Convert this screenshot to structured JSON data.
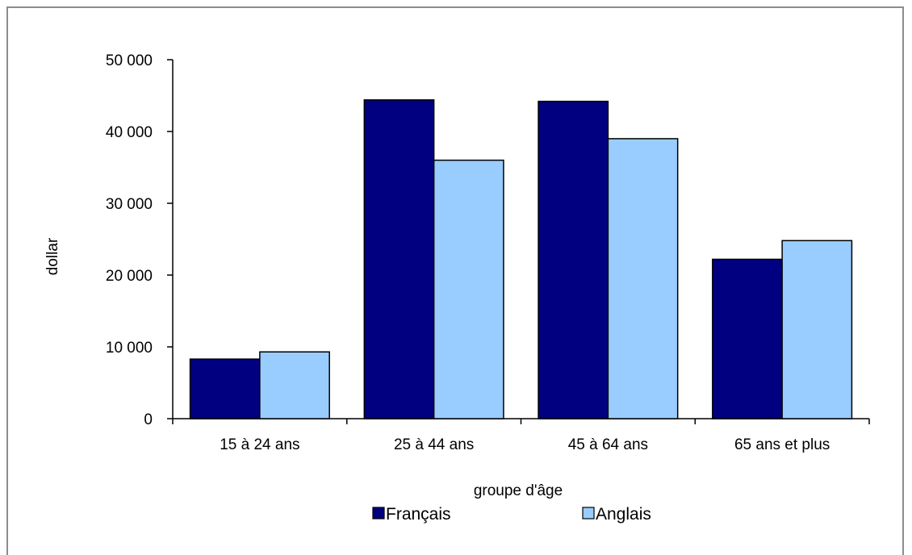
{
  "chart_data": {
    "type": "bar",
    "title": "",
    "xlabel": "groupe d'âge",
    "ylabel": "dollar",
    "categories": [
      "15 à 24 ans",
      "25 à 44 ans",
      "45 à 64 ans",
      "65 ans et plus"
    ],
    "series": [
      {
        "name": "Français",
        "color": "#000080",
        "values": [
          8300,
          44400,
          44200,
          22200
        ]
      },
      {
        "name": "Anglais",
        "color": "#99ccff",
        "values": [
          9300,
          36000,
          39000,
          24800
        ]
      }
    ],
    "ylim": [
      0,
      50000
    ],
    "yticks": [
      0,
      10000,
      20000,
      30000,
      40000,
      50000
    ],
    "ytick_labels": [
      "0",
      "10 000",
      "20 000",
      "30 000",
      "40 000",
      "50 000"
    ],
    "grid": false,
    "legend_position": "bottom"
  }
}
